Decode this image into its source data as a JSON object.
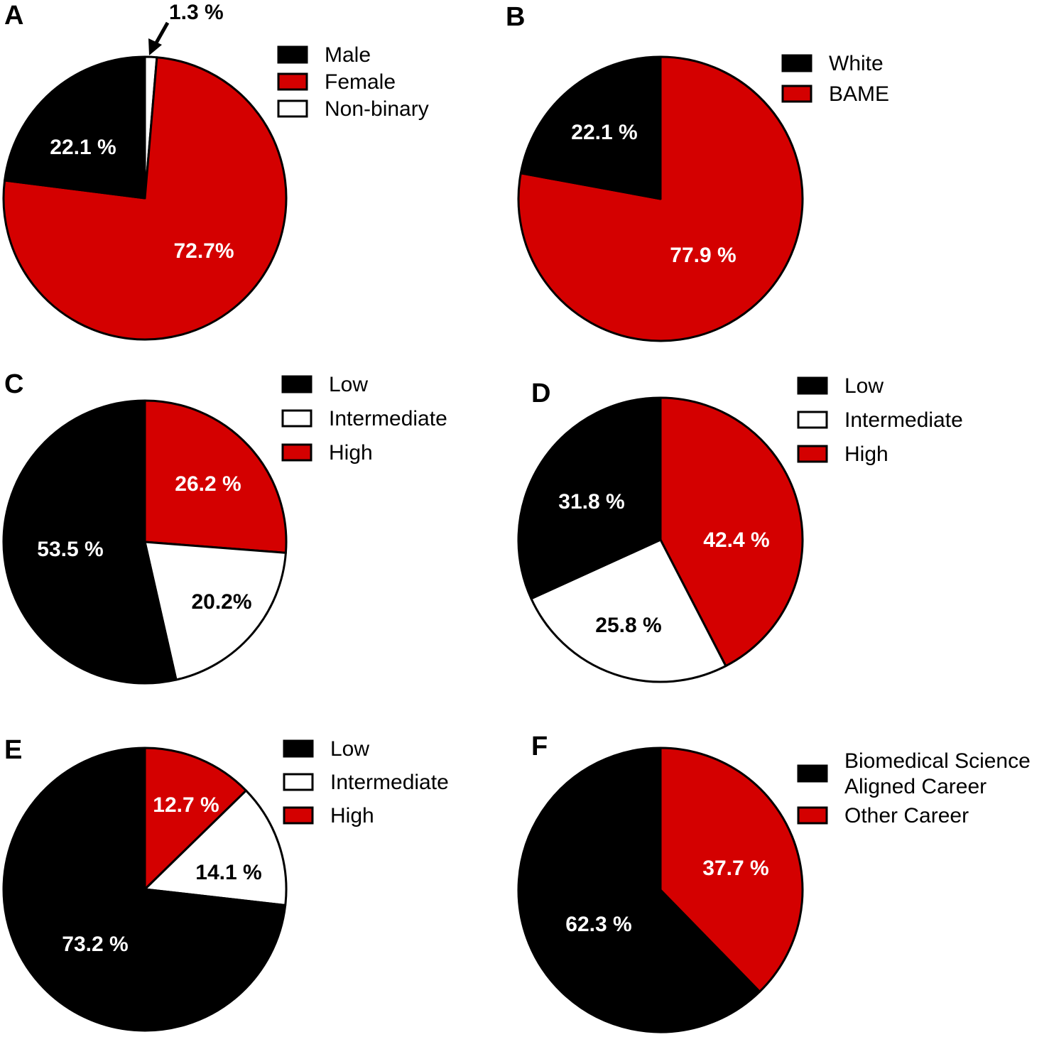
{
  "colors": {
    "black": "#000000",
    "red": "#d40000",
    "white": "#ffffff"
  },
  "chart_data": [
    {
      "type": "pie",
      "panel": "A",
      "categories": [
        "Male",
        "Female",
        "Non-binary"
      ],
      "values": [
        22.1,
        72.7,
        1.3
      ],
      "slice_labels": [
        "22.1 %",
        "72.7%",
        ""
      ],
      "colors": [
        "#000000",
        "#d40000",
        "#ffffff"
      ],
      "legend": [
        "Male",
        "Female",
        "Non-binary"
      ],
      "legend_placement": "top-right",
      "annotation": "1.3 %"
    },
    {
      "type": "pie",
      "panel": "B",
      "categories": [
        "White",
        "BAME"
      ],
      "values": [
        22.1,
        77.9
      ],
      "slice_labels": [
        "22.1 %",
        "77.9 %"
      ],
      "colors": [
        "#000000",
        "#d40000"
      ],
      "legend": [
        "White",
        "BAME"
      ],
      "legend_placement": "top-right"
    },
    {
      "type": "pie",
      "panel": "C",
      "categories": [
        "Low",
        "Intermediate",
        "High"
      ],
      "values": [
        53.5,
        20.2,
        26.2
      ],
      "slice_labels": [
        "53.5 %",
        "20.2%",
        "26.2 %"
      ],
      "colors": [
        "#000000",
        "#ffffff",
        "#d40000"
      ],
      "legend": [
        "Low",
        "Intermediate",
        "High"
      ],
      "legend_placement": "top-right"
    },
    {
      "type": "pie",
      "panel": "D",
      "categories": [
        "Low",
        "Intermediate",
        "High"
      ],
      "values": [
        31.8,
        25.8,
        42.4
      ],
      "slice_labels": [
        "31.8 %",
        "25.8 %",
        "42.4 %"
      ],
      "colors": [
        "#000000",
        "#ffffff",
        "#d40000"
      ],
      "legend": [
        "Low",
        "Intermediate",
        "High"
      ],
      "legend_placement": "top-right"
    },
    {
      "type": "pie",
      "panel": "E",
      "categories": [
        "Low",
        "Intermediate",
        "High"
      ],
      "values": [
        73.2,
        14.1,
        12.7
      ],
      "slice_labels": [
        "73.2 %",
        "14.1 %",
        "12.7 %"
      ],
      "colors": [
        "#000000",
        "#ffffff",
        "#d40000"
      ],
      "legend": [
        "Low",
        "Intermediate",
        "High"
      ],
      "legend_placement": "top-right"
    },
    {
      "type": "pie",
      "panel": "F",
      "categories": [
        "Biomedical Science Aligned Career",
        "Other Career"
      ],
      "values": [
        62.3,
        37.7
      ],
      "slice_labels": [
        "62.3 %",
        "37.7 %"
      ],
      "colors": [
        "#000000",
        "#d40000"
      ],
      "legend": [
        [
          "Biomedical Science",
          "Aligned Career"
        ],
        [
          "Other Career"
        ]
      ],
      "legend_placement": "top-right"
    }
  ]
}
